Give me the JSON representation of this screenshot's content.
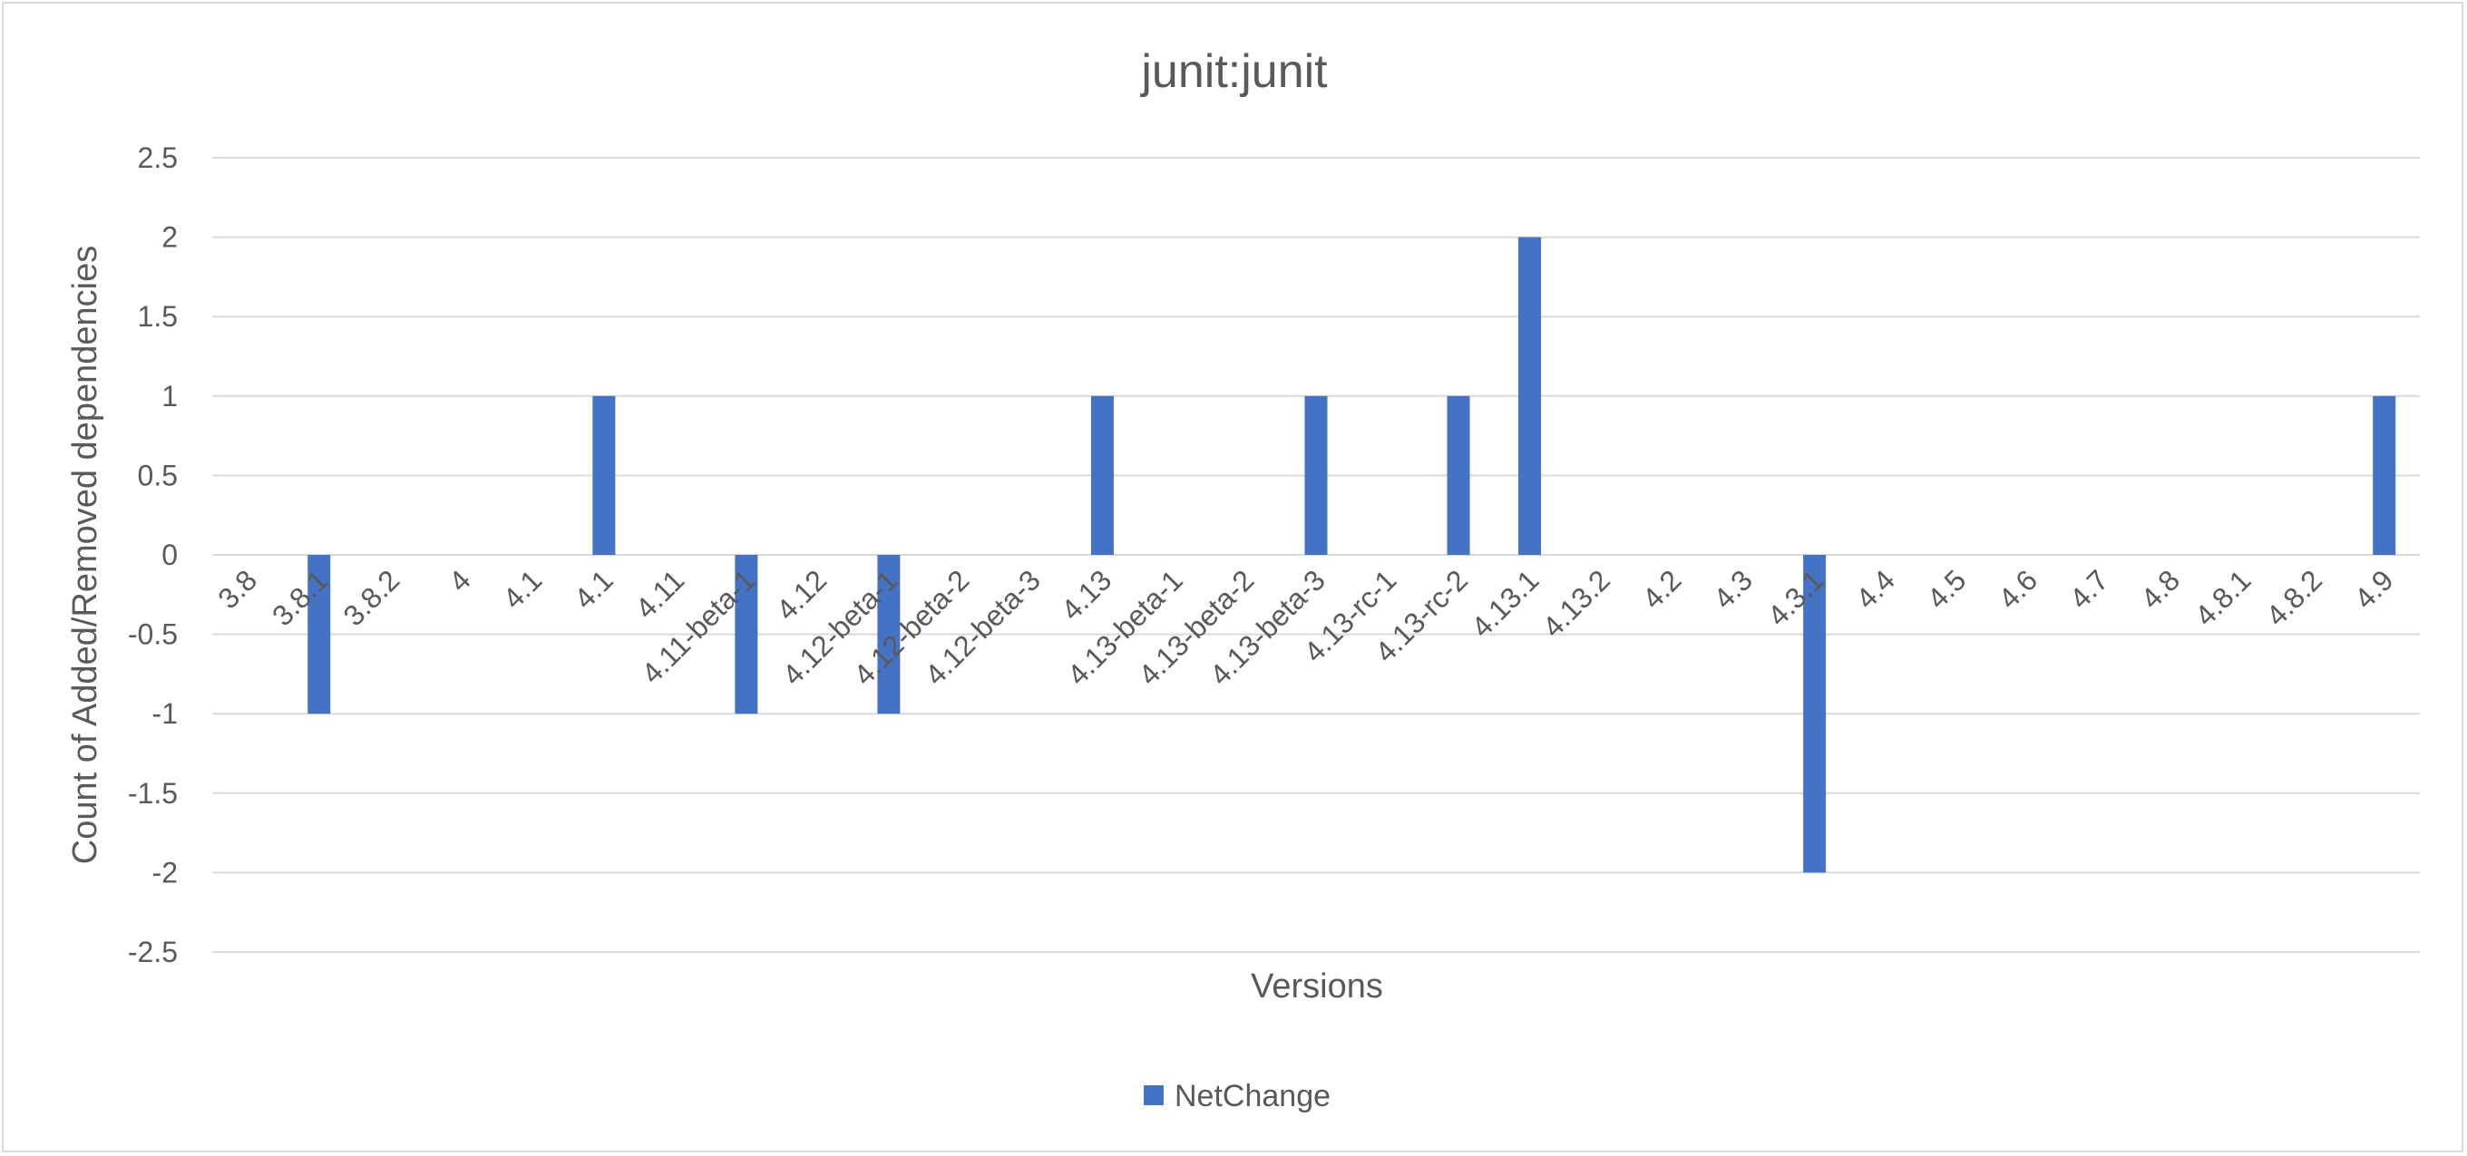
{
  "chart_data": {
    "type": "bar",
    "title": "junit:junit",
    "xlabel": "Versions",
    "ylabel": "Count of Added/Removed dependencies",
    "ylim": [
      -2.5,
      2.5
    ],
    "yticks": [
      2.5,
      2,
      1.5,
      1,
      0.5,
      0,
      -0.5,
      -1,
      -1.5,
      -2,
      -2.5
    ],
    "grid": true,
    "legend_position": "bottom",
    "bar_color": "#4472c4",
    "categories": [
      "3.8",
      "3.8.1",
      "3.8.2",
      "4",
      "4.1",
      "4.1",
      "4.11",
      "4.11-beta-1",
      "4.12",
      "4.12-beta-1",
      "4.12-beta-2",
      "4.12-beta-3",
      "4.13",
      "4.13-beta-1",
      "4.13-beta-2",
      "4.13-beta-3",
      "4.13-rc-1",
      "4.13-rc-2",
      "4.13.1",
      "4.13.2",
      "4.2",
      "4.3",
      "4.3.1",
      "4.4",
      "4.5",
      "4.6",
      "4.7",
      "4.8",
      "4.8.1",
      "4.8.2",
      "4.9"
    ],
    "series": [
      {
        "name": "NetChange",
        "values": [
          0,
          -1,
          0,
          0,
          0,
          1,
          0,
          -1,
          0,
          -1,
          0,
          0,
          1,
          0,
          0,
          1,
          0,
          1,
          2,
          0,
          0,
          0,
          -2,
          0,
          0,
          0,
          0,
          0,
          0,
          0,
          1
        ]
      }
    ]
  }
}
